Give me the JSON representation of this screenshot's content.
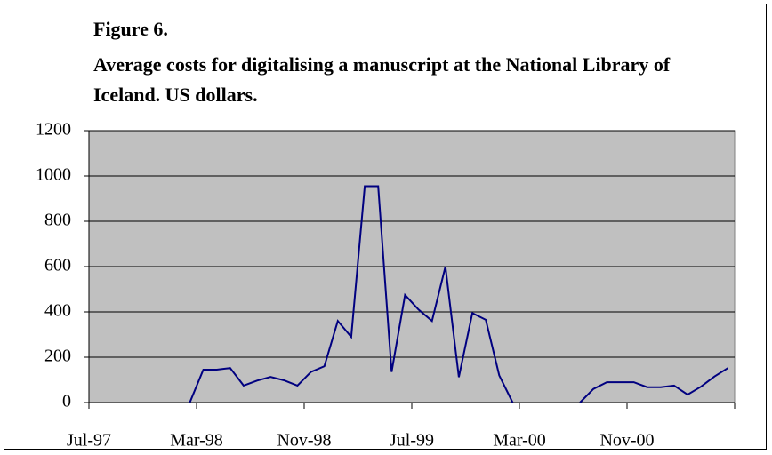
{
  "chart_data": {
    "type": "line",
    "label": "Figure 6.",
    "title": "Average costs for digitalising a manuscript at the National Library of Iceland. US dollars.",
    "categories": [
      "Jul-97",
      null,
      null,
      null,
      null,
      null,
      null,
      null,
      "Mar-98",
      null,
      null,
      null,
      null,
      null,
      null,
      null,
      "Nov-98",
      null,
      null,
      null,
      null,
      null,
      null,
      null,
      "Jul-99",
      null,
      null,
      null,
      null,
      null,
      null,
      null,
      "Mar-00",
      null,
      null,
      null,
      null,
      null,
      null,
      null,
      "Nov-00",
      null,
      null,
      null,
      null,
      null,
      null,
      null
    ],
    "series": [
      {
        "color": "#000080",
        "values": [
          null,
          null,
          null,
          null,
          null,
          null,
          null,
          0,
          145,
          145,
          152,
          75,
          97,
          113,
          98,
          75,
          135,
          160,
          360,
          290,
          955,
          955,
          135,
          475,
          410,
          360,
          600,
          112,
          395,
          365,
          120,
          0,
          null,
          null,
          null,
          null,
          0,
          60,
          90,
          90,
          90,
          68,
          68,
          75,
          35,
          70,
          115,
          152
        ]
      }
    ],
    "ylim": [
      0,
      1200
    ],
    "yticks": [
      0,
      200,
      400,
      600,
      800,
      1000,
      1200
    ],
    "grid": true,
    "background": "#c0c0c0"
  }
}
